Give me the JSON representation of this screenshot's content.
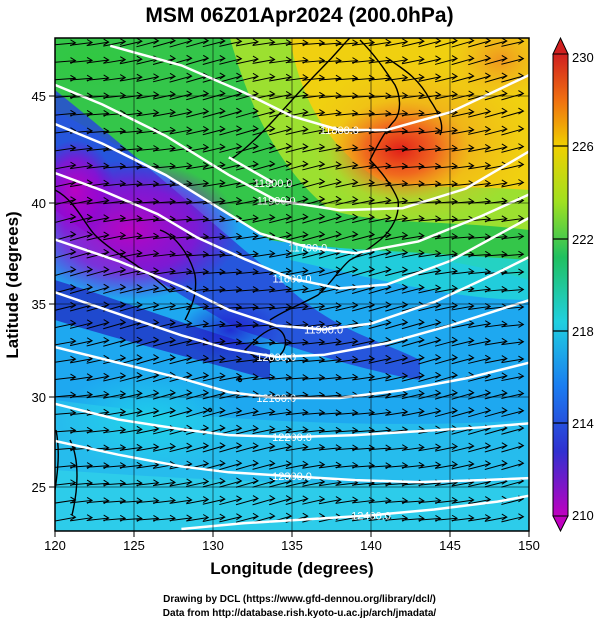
{
  "title": "MSM 06Z01Apr2024 (200.0hPa)",
  "credits": {
    "line1": "Drawing by DCL (https://www.gfd-dennou.org/library/dcl/)",
    "line2": "Data from http://database.rish.kyoto-u.ac.jp/arch/jmadata/"
  },
  "axes": {
    "xlabel": "Longitude (degrees)",
    "ylabel": "Latitude  (degrees)",
    "xlim": [
      120,
      150
    ],
    "ylim": [
      22.4,
      47.6
    ],
    "xticks": [
      "120",
      "125",
      "130",
      "135",
      "140",
      "145",
      "150"
    ],
    "yticks": [
      "25",
      "30",
      "35",
      "40",
      "45"
    ]
  },
  "colorbar": {
    "range": [
      210,
      230
    ],
    "tick_labels": [
      "230",
      "226",
      "222",
      "218",
      "214",
      "210"
    ],
    "colors": [
      "#c000c0",
      "#3030d0",
      "#1a7cf0",
      "#20d0e0",
      "#20c060",
      "#a0e020",
      "#f0d000",
      "#f07010",
      "#d02020"
    ]
  },
  "chart_data": {
    "type": "heatmap",
    "title": "MSM 06Z01Apr2024 (200.0hPa)",
    "xlabel": "Longitude (degrees)",
    "ylabel": "Latitude  (degrees)",
    "xlim": [
      120,
      150
    ],
    "ylim": [
      22.4,
      47.6
    ],
    "colorbar_range": [
      210,
      230
    ],
    "temperature_field_samples": [
      {
        "lon": 121,
        "lat": 38,
        "value": 211
      },
      {
        "lon": 127,
        "lat": 36,
        "value": 211
      },
      {
        "lon": 123,
        "lat": 33,
        "value": 213
      },
      {
        "lon": 132,
        "lat": 33,
        "value": 214
      },
      {
        "lon": 122,
        "lat": 27,
        "value": 218
      },
      {
        "lon": 130,
        "lat": 26,
        "value": 218
      },
      {
        "lon": 140,
        "lat": 30,
        "value": 216
      },
      {
        "lon": 148,
        "lat": 28,
        "value": 219
      },
      {
        "lon": 148,
        "lat": 36,
        "value": 218
      },
      {
        "lon": 124,
        "lat": 45,
        "value": 221
      },
      {
        "lon": 133,
        "lat": 40,
        "value": 222
      },
      {
        "lon": 139,
        "lat": 38,
        "value": 223
      },
      {
        "lon": 136,
        "lat": 44,
        "value": 226
      },
      {
        "lon": 142,
        "lat": 41,
        "value": 228
      },
      {
        "lon": 147,
        "lat": 46,
        "value": 227
      }
    ],
    "contours": [
      {
        "label": "11800.0",
        "points": [
          [
            123.5,
            47.2
          ],
          [
            128,
            46.2
          ],
          [
            132,
            44.8
          ],
          [
            135,
            43.6
          ],
          [
            138,
            42.9
          ],
          [
            141,
            42.9
          ],
          [
            145,
            43.8
          ],
          [
            150,
            45.7
          ]
        ]
      },
      {
        "label": "11900.0",
        "points": [
          [
            120,
            45.2
          ],
          [
            123,
            44.2
          ],
          [
            127,
            42.6
          ],
          [
            131,
            40.6
          ],
          [
            134,
            39.3
          ],
          [
            138,
            38.8
          ],
          [
            142,
            38.9
          ],
          [
            146,
            39.9
          ],
          [
            150,
            41.8
          ]
        ]
      },
      {
        "label": "11900.0",
        "points": [
          [
            131,
            41.5
          ],
          [
            133.8,
            40.2
          ]
        ]
      },
      {
        "label": "11600.0",
        "points": [
          [
            120,
            40.7
          ],
          [
            123,
            39.8
          ],
          [
            126.5,
            38.6
          ],
          [
            129,
            37.4
          ],
          [
            132,
            36.3
          ],
          [
            135,
            35.3
          ],
          [
            138,
            34.8
          ],
          [
            141,
            35.0
          ],
          [
            145,
            36.2
          ],
          [
            150,
            38.4
          ]
        ]
      },
      {
        "label": "11700.0",
        "points": [
          [
            120,
            43.2
          ],
          [
            123,
            42.2
          ],
          [
            127,
            40.6
          ],
          [
            130,
            39.1
          ],
          [
            133,
            37.6
          ],
          [
            136,
            36.9
          ],
          [
            139,
            36.6
          ],
          [
            143,
            37.2
          ],
          [
            147,
            38.5
          ],
          [
            150,
            39.6
          ]
        ]
      },
      {
        "label": "11900.0",
        "points": [
          [
            120,
            37.3
          ],
          [
            124,
            36.2
          ],
          [
            128,
            34.9
          ],
          [
            131,
            33.7
          ],
          [
            134,
            32.9
          ],
          [
            137,
            32.7
          ],
          [
            140,
            33.0
          ],
          [
            144,
            34.1
          ],
          [
            148,
            35.6
          ],
          [
            150,
            36.4
          ]
        ]
      },
      {
        "label": "12000.0",
        "points": [
          [
            120,
            34.6
          ],
          [
            124,
            33.5
          ],
          [
            128,
            32.4
          ],
          [
            131,
            31.7
          ],
          [
            134,
            31.3
          ],
          [
            137,
            31.4
          ],
          [
            141,
            32.0
          ],
          [
            145,
            32.9
          ],
          [
            150,
            34.2
          ]
        ]
      },
      {
        "label": "12100.0",
        "points": [
          [
            120,
            31.8
          ],
          [
            124,
            31.0
          ],
          [
            128,
            30.2
          ],
          [
            131,
            29.5
          ],
          [
            134,
            29.2
          ],
          [
            138,
            29.2
          ],
          [
            142,
            29.6
          ],
          [
            146,
            30.2
          ],
          [
            150,
            31.0
          ]
        ]
      },
      {
        "label": "12200.0",
        "points": [
          [
            120,
            28.9
          ],
          [
            124,
            28.1
          ],
          [
            128,
            27.6
          ],
          [
            131,
            27.3
          ],
          [
            135,
            27.2
          ],
          [
            139,
            27.3
          ],
          [
            143,
            27.5
          ],
          [
            147,
            27.7
          ],
          [
            150,
            27.9
          ]
        ]
      },
      {
        "label": "12300.0",
        "points": [
          [
            120,
            27.0
          ],
          [
            124,
            26.3
          ],
          [
            128,
            25.7
          ],
          [
            131,
            25.4
          ],
          [
            135,
            25.2
          ],
          [
            139,
            25.0
          ],
          [
            143,
            24.9
          ],
          [
            147,
            25.0
          ],
          [
            150,
            25.1
          ]
        ]
      },
      {
        "label": "12400.0",
        "points": [
          [
            128,
            22.5
          ],
          [
            132,
            22.8
          ],
          [
            136,
            23.0
          ],
          [
            140,
            23.2
          ],
          [
            144,
            23.5
          ],
          [
            148,
            23.9
          ],
          [
            150,
            24.2
          ]
        ]
      }
    ],
    "wind": {
      "direction": "westerly",
      "note_arrows": "uniform west-to-east wind vectors"
    }
  }
}
